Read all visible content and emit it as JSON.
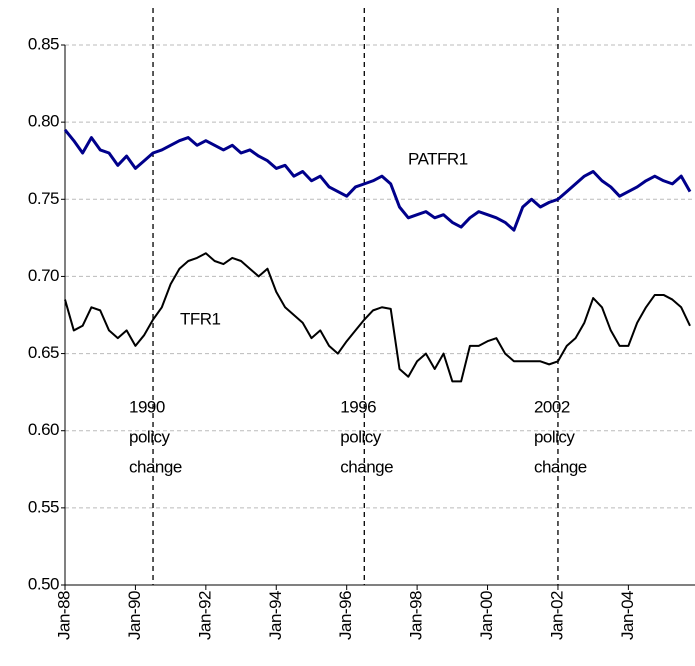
{
  "chart_data": {
    "type": "line",
    "categories": [
      "Jan-88",
      null,
      null,
      null,
      null,
      null,
      null,
      null,
      "Jan-90",
      null,
      null,
      null,
      null,
      null,
      null,
      null,
      "Jan-92",
      null,
      null,
      null,
      null,
      null,
      null,
      null,
      "Jan-94",
      null,
      null,
      null,
      null,
      null,
      null,
      null,
      "Jan-96",
      null,
      null,
      null,
      null,
      null,
      null,
      null,
      "Jan-98",
      null,
      null,
      null,
      null,
      null,
      null,
      null,
      "Jan-00",
      null,
      null,
      null,
      null,
      null,
      null,
      null,
      "Jan-02",
      null,
      null,
      null,
      null,
      null,
      null,
      null,
      "Jan-04",
      null,
      null,
      null,
      null,
      null,
      null,
      null
    ],
    "series": [
      {
        "name": "PATFR1",
        "color": "#00008b",
        "values": [
          0.795,
          0.788,
          0.78,
          0.79,
          0.782,
          0.78,
          0.772,
          0.778,
          0.77,
          0.775,
          0.78,
          0.782,
          0.785,
          0.788,
          0.79,
          0.785,
          0.788,
          0.785,
          0.782,
          0.785,
          0.78,
          0.782,
          0.778,
          0.775,
          0.77,
          0.772,
          0.765,
          0.768,
          0.762,
          0.765,
          0.758,
          0.755,
          0.752,
          0.758,
          0.76,
          0.762,
          0.765,
          0.76,
          0.745,
          0.738,
          0.74,
          0.742,
          0.738,
          0.74,
          0.735,
          0.732,
          0.738,
          0.742,
          0.74,
          0.738,
          0.735,
          0.73,
          0.745,
          0.75,
          0.745,
          0.748,
          0.75,
          0.755,
          0.76,
          0.765,
          0.768,
          0.762,
          0.758,
          0.752,
          0.755,
          0.758,
          0.762,
          0.765,
          0.762,
          0.76,
          0.765,
          0.755
        ]
      },
      {
        "name": "TFR1",
        "color": "#000000",
        "values": [
          0.685,
          0.665,
          0.668,
          0.68,
          0.678,
          0.665,
          0.66,
          0.665,
          0.655,
          0.662,
          0.672,
          0.68,
          0.695,
          0.705,
          0.71,
          0.712,
          0.715,
          0.71,
          0.708,
          0.712,
          0.71,
          0.705,
          0.7,
          0.705,
          0.69,
          0.68,
          0.675,
          0.67,
          0.66,
          0.665,
          0.655,
          0.65,
          0.658,
          0.665,
          0.672,
          0.678,
          0.68,
          0.679,
          0.64,
          0.635,
          0.645,
          0.65,
          0.64,
          0.65,
          0.632,
          0.632,
          0.655,
          0.655,
          0.658,
          0.66,
          0.65,
          0.645,
          0.645,
          0.645,
          0.645,
          0.643,
          0.645,
          0.655,
          0.66,
          0.67,
          0.686,
          0.68,
          0.665,
          0.655,
          0.655,
          0.67,
          0.68,
          0.688,
          0.688,
          0.685,
          0.68,
          0.668
        ]
      }
    ],
    "ylim": [
      0.5,
      0.85
    ],
    "yticks": [
      {
        "value": 0.5,
        "label": "0.50"
      },
      0.55,
      {
        "value": 0.6,
        "label": "0.60"
      },
      0.65,
      {
        "value": 0.7,
        "label": "0.70"
      },
      0.75,
      {
        "value": 0.8,
        "label": "0.80"
      },
      0.85
    ],
    "grid": true,
    "annotations": [
      {
        "index": 10,
        "lines": [
          "1990",
          "policy",
          "change"
        ]
      },
      {
        "index": 34,
        "lines": [
          "1996",
          "policy",
          "change"
        ]
      },
      {
        "index": 56,
        "lines": [
          "2002",
          "policy",
          "change"
        ]
      }
    ]
  }
}
